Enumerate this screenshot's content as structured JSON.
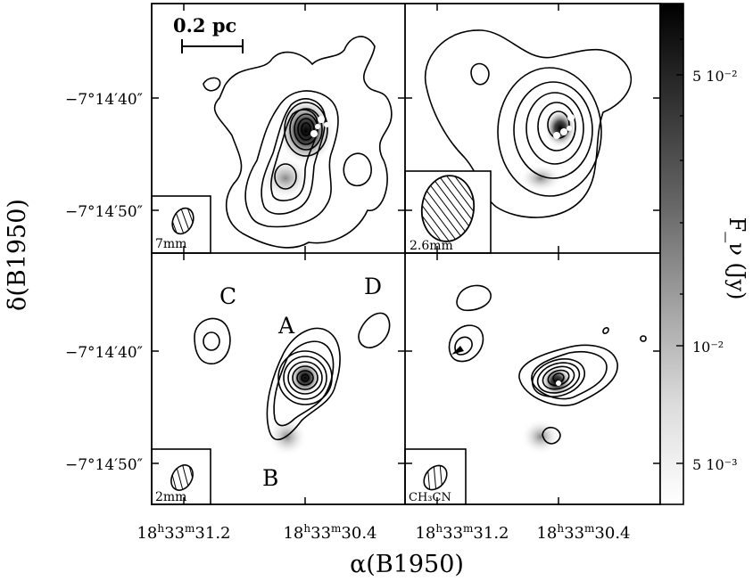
{
  "chart_data": {
    "type": "heatmap",
    "xlabel": "α(B1950)",
    "ylabel": "δ(B1950)",
    "colorbar": {
      "label": "F_ν (Jy)",
      "ticks": [
        "5 10⁻²",
        "10⁻²",
        "5 10⁻³"
      ],
      "scale": "log",
      "colors": [
        "#ffffff",
        "#000000"
      ]
    },
    "x_ticks": [
      {
        "h": "18",
        "m": "33",
        "s": "31.2"
      },
      {
        "h": "18",
        "m": "33",
        "s": "30.4"
      },
      {
        "h": "18",
        "m": "33",
        "s": "31.2"
      },
      {
        "h": "18",
        "m": "33",
        "s": "30.4"
      }
    ],
    "y_ticks": [
      "−7°14′40″",
      "−7°14′50″",
      "−7°14′40″",
      "−7°14′50″"
    ],
    "scale_bar": "0.2 pc",
    "panels": [
      {
        "id": "top-left",
        "label": "7mm",
        "source_labels": []
      },
      {
        "id": "top-right",
        "label": "2.6mm",
        "source_labels": []
      },
      {
        "id": "bottom-left",
        "label": "2mm",
        "source_labels": [
          "C",
          "D",
          "A",
          "B"
        ]
      },
      {
        "id": "bottom-right",
        "label": "CH₃CN",
        "source_labels": []
      }
    ]
  }
}
